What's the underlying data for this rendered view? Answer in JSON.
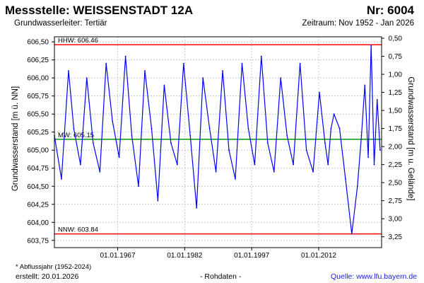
{
  "header": {
    "title": "Messstelle: WEISSENSTADT 12A",
    "number": "Nr: 6004",
    "aquifer": "Grundwasserleiter: Tertiär",
    "period": "Zeitraum: Nov 1952 - Jan 2026"
  },
  "footer": {
    "footnote": "* Abflussjahr (1952-2024)",
    "created": "erstellt:  20.01.2026",
    "rawdata": "- Rohdaten -",
    "source": "Quelle: www.lfu.bayern.de"
  },
  "colors": {
    "series": "#0000ff",
    "hhw": "#ff0000",
    "nnw": "#ff0000",
    "mnw": "#009900",
    "grid": "#c8c8c8",
    "axis": "#000000"
  },
  "chart_data": {
    "type": "line",
    "xlabel": "",
    "ylabel": "Grundwasserstand [m ü. NN]",
    "ylabel_right": "Grundwasserstand [m u. Gelände]",
    "xlim": [
      "1952-11-01",
      "2026-01-31"
    ],
    "ylim": [
      603.65,
      606.57
    ],
    "ylim_right": [
      3.4,
      0.48
    ],
    "x_ticks": [
      "01.01.1967",
      "01.01.1982",
      "01.01.1997",
      "01.01.2012"
    ],
    "y_ticks": [
      "603,75",
      "604,00",
      "604,25",
      "604,50",
      "604,75",
      "605,00",
      "605,25",
      "605,50",
      "605,75",
      "606,00",
      "606,25",
      "606,50"
    ],
    "y_ticks_right": [
      "0,50",
      "0,75",
      "1,00",
      "1,25",
      "1,50",
      "1,75",
      "2,00",
      "2,25",
      "2,50",
      "2,75",
      "3,00",
      "3,25"
    ],
    "grid": true,
    "reference_lines": [
      {
        "label": "HHW: 606.46",
        "value": 606.46,
        "color": "#ff0000"
      },
      {
        "label": "MW: 605.15",
        "value": 605.15,
        "color": "#009900"
      },
      {
        "label": "NNW: 603.84",
        "value": 603.84,
        "color": "#ff0000"
      }
    ],
    "series": [
      {
        "values_note": "",
        "x": [
          "1952-11-01",
          "1954-06-01",
          "1956-01-01",
          "1957-03-01",
          "1958-09-01",
          "1960-02-01",
          "1961-07-01",
          "1963-01-01",
          "1964-06-01",
          "1965-11-01",
          "1967-05-01",
          "1968-10-01",
          "1970-03-01",
          "1971-09-01",
          "1973-02-01",
          "1974-08-01",
          "1976-01-01",
          "1977-06-01",
          "1978-12-01",
          "1980-05-01",
          "1981-10-01",
          "1983-04-01",
          "1984-09-01",
          "1986-02-01",
          "1987-08-01",
          "1989-01-01",
          "1990-07-01",
          "1991-12-01",
          "1993-05-01",
          "1994-11-01",
          "1996-04-01",
          "1997-09-01",
          "1999-03-01",
          "2000-08-01",
          "2002-01-01",
          "2003-07-01",
          "2004-12-01",
          "2006-05-01",
          "2007-11-01",
          "2009-04-01",
          "2010-10-01",
          "2012-03-01",
          "2013-06-01",
          "2014-02-01",
          "2014-10-01",
          "2015-06-01",
          "2016-09-01",
          "2018-01-01",
          "2019-06-01",
          "2020-09-01",
          "2021-08-01",
          "2022-05-01",
          "2023-02-01",
          "2023-10-01",
          "2024-06-01",
          "2025-02-01",
          "2025-10-01"
        ],
        "y": [
          605.2,
          604.6,
          606.1,
          605.3,
          604.8,
          606.0,
          605.1,
          604.7,
          606.2,
          605.4,
          604.9,
          606.3,
          605.2,
          604.5,
          606.1,
          605.3,
          604.3,
          605.9,
          605.1,
          604.8,
          606.2,
          605.2,
          604.2,
          606.0,
          605.3,
          604.7,
          606.1,
          605.0,
          604.6,
          606.2,
          605.3,
          604.8,
          606.3,
          605.1,
          604.7,
          606.0,
          605.2,
          604.8,
          606.2,
          605.0,
          604.7,
          605.8,
          605.1,
          604.8,
          605.3,
          605.5,
          605.3,
          604.6,
          603.84,
          604.5,
          605.2,
          605.9,
          604.9,
          606.45,
          604.8,
          605.7,
          605.0
        ]
      }
    ]
  }
}
